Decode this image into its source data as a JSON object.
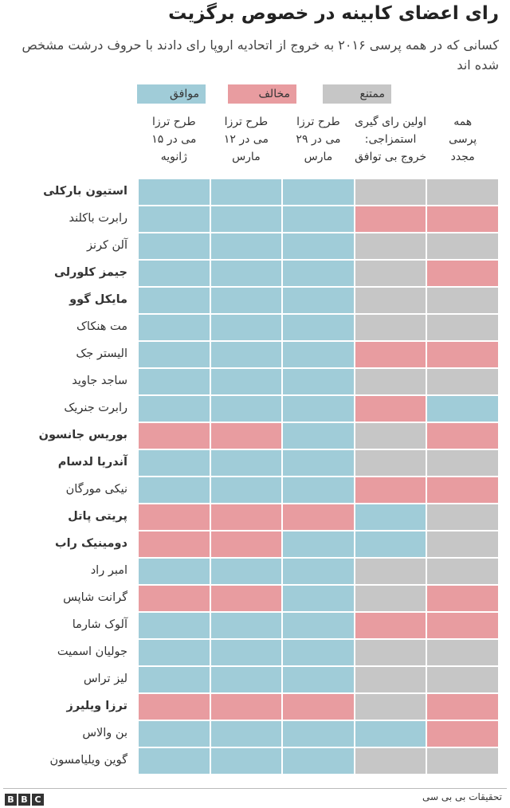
{
  "title": "رای اعضای کابینه در خصوص برگزیت",
  "subtitle": "کسانی که در همه پرسی ۲۰۱۶ به خروج از اتحادیه اروپا رای دادند با حروف درشت مشخص شده اند",
  "legend": [
    {
      "label": "موافق",
      "color": "#a0ccd8"
    },
    {
      "label": "مخالف",
      "color": "#e89ca0"
    },
    {
      "label": "ممتنع",
      "color": "#c6c6c6"
    }
  ],
  "columns": [
    [
      "همه",
      "پرسی",
      "مجدد"
    ],
    [
      "اولین رای گیری",
      "استمزاجی:",
      "خروج بی توافق"
    ],
    [
      "طرح ترزا",
      "می در ۲۹",
      "مارس"
    ],
    [
      "طرح ترزا",
      "می در ۱۲",
      "مارس"
    ],
    [
      "طرح ترزا",
      "می در ۱۵",
      "ژانویه"
    ]
  ],
  "rows": [
    {
      "name": "استیون بارکلی",
      "bold": true,
      "votes": [
        "ممتنع",
        "ممتنع",
        "موافق",
        "موافق",
        "موافق"
      ]
    },
    {
      "name": "رابرت باکلند",
      "bold": false,
      "votes": [
        "مخالف",
        "مخالف",
        "موافق",
        "موافق",
        "موافق"
      ]
    },
    {
      "name": "آلن کرنز",
      "bold": false,
      "votes": [
        "ممتنع",
        "ممتنع",
        "موافق",
        "موافق",
        "موافق"
      ]
    },
    {
      "name": "جیمز کلورلی",
      "bold": true,
      "votes": [
        "مخالف",
        "ممتنع",
        "موافق",
        "موافق",
        "موافق"
      ]
    },
    {
      "name": "مایکل گوو",
      "bold": true,
      "votes": [
        "ممتنع",
        "ممتنع",
        "موافق",
        "موافق",
        "موافق"
      ]
    },
    {
      "name": "مت هنکاک",
      "bold": false,
      "votes": [
        "ممتنع",
        "ممتنع",
        "موافق",
        "موافق",
        "موافق"
      ]
    },
    {
      "name": "الیستر جک",
      "bold": false,
      "votes": [
        "مخالف",
        "مخالف",
        "موافق",
        "موافق",
        "موافق"
      ]
    },
    {
      "name": "ساجد جاوید",
      "bold": false,
      "votes": [
        "ممتنع",
        "ممتنع",
        "موافق",
        "موافق",
        "موافق"
      ]
    },
    {
      "name": "رابرت جنریک",
      "bold": false,
      "votes": [
        "موافق",
        "مخالف",
        "موافق",
        "موافق",
        "موافق"
      ]
    },
    {
      "name": "بوریس جانسون",
      "bold": true,
      "votes": [
        "مخالف",
        "ممتنع",
        "موافق",
        "مخالف",
        "مخالف"
      ]
    },
    {
      "name": "آندریا لدسام",
      "bold": true,
      "votes": [
        "ممتنع",
        "ممتنع",
        "موافق",
        "موافق",
        "موافق"
      ]
    },
    {
      "name": "نیکی مورگان",
      "bold": false,
      "votes": [
        "مخالف",
        "مخالف",
        "موافق",
        "موافق",
        "موافق"
      ]
    },
    {
      "name": "پریتی پاتل",
      "bold": true,
      "votes": [
        "ممتنع",
        "موافق",
        "مخالف",
        "مخالف",
        "مخالف"
      ]
    },
    {
      "name": "دومینیک راب",
      "bold": true,
      "votes": [
        "ممتنع",
        "موافق",
        "موافق",
        "مخالف",
        "مخالف"
      ]
    },
    {
      "name": "امبر راد",
      "bold": false,
      "votes": [
        "ممتنع",
        "ممتنع",
        "موافق",
        "موافق",
        "موافق"
      ]
    },
    {
      "name": "گرانت شاپس",
      "bold": false,
      "votes": [
        "مخالف",
        "ممتنع",
        "موافق",
        "مخالف",
        "مخالف"
      ]
    },
    {
      "name": "آلوک شارما",
      "bold": false,
      "votes": [
        "مخالف",
        "مخالف",
        "موافق",
        "موافق",
        "موافق"
      ]
    },
    {
      "name": "جولیان اسمیت",
      "bold": false,
      "votes": [
        "ممتنع",
        "ممتنع",
        "موافق",
        "موافق",
        "موافق"
      ]
    },
    {
      "name": "لیز تراس",
      "bold": false,
      "votes": [
        "ممتنع",
        "ممتنع",
        "موافق",
        "موافق",
        "موافق"
      ]
    },
    {
      "name": "ترزا ویلیرز",
      "bold": true,
      "votes": [
        "مخالف",
        "ممتنع",
        "مخالف",
        "مخالف",
        "مخالف"
      ]
    },
    {
      "name": "بن والاس",
      "bold": false,
      "votes": [
        "مخالف",
        "موافق",
        "موافق",
        "موافق",
        "موافق"
      ]
    },
    {
      "name": "گوین ویلیامسون",
      "bold": false,
      "votes": [
        "ممتنع",
        "ممتنع",
        "موافق",
        "موافق",
        "موافق"
      ]
    }
  ],
  "source": "تحقیقات بی بی سی",
  "logo": [
    "B",
    "B",
    "C"
  ]
}
